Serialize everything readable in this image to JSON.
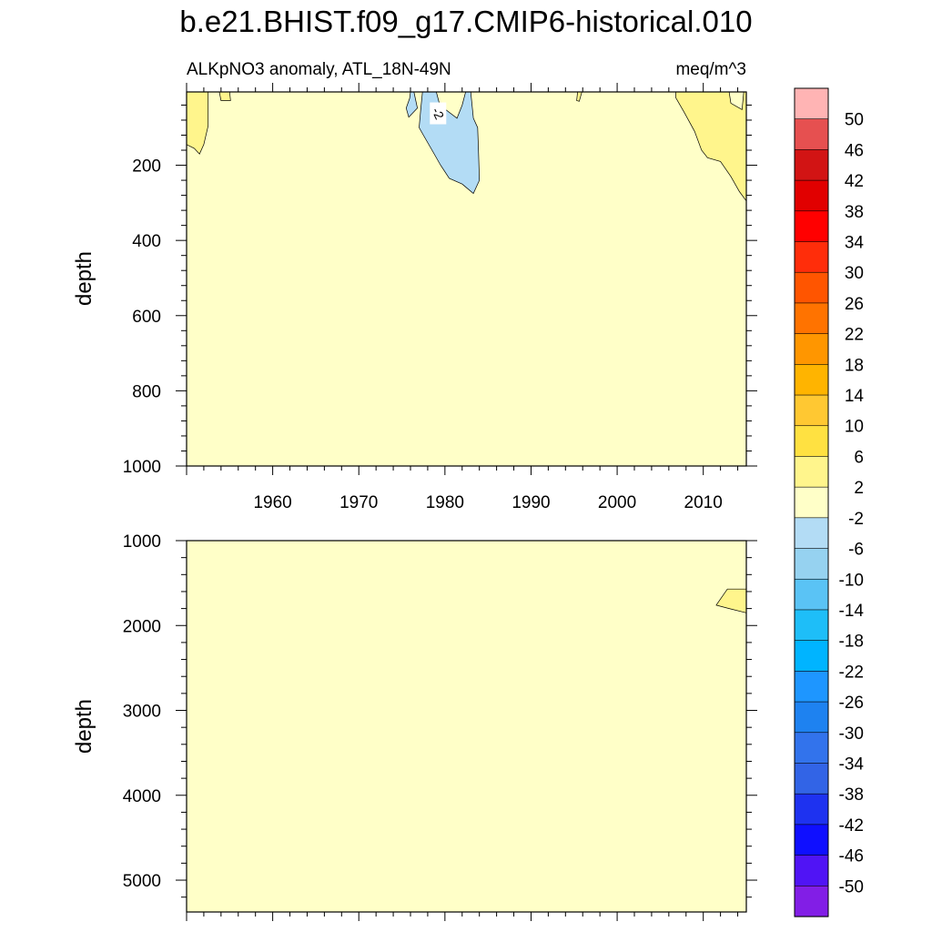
{
  "title": "b.e21.BHIST.f09_g17.CMIP6-historical.010",
  "subtitle_left": "ALKpNO3 anomaly, ATL_18N-49N",
  "subtitle_right": "meq/m^3",
  "colors": {
    "background_fill": "#ffffc8",
    "light_yellow": "#fff58c",
    "light_blue": "#b3dcf5"
  },
  "chart_data": [
    {
      "type": "heatmap",
      "panel": "upper",
      "ylabel": "depth",
      "xlabel": "",
      "xlim": [
        1950,
        2015
      ],
      "ylim": [
        1000,
        5
      ],
      "x_ticks": [
        1960,
        1970,
        1980,
        1990,
        2000,
        2010
      ],
      "x_tick_labels": [
        "1960",
        "1970",
        "1980",
        "1990",
        "2000",
        "2010"
      ],
      "y_ticks": [
        200,
        400,
        600,
        800,
        1000
      ],
      "y_tick_labels": [
        "200",
        "400",
        "600",
        "800",
        "1000"
      ],
      "contour_label": "-2",
      "regions": [
        {
          "name": "positive-anomaly-left",
          "band": "2 to 6",
          "poly": [
            [
              1950,
              5
            ],
            [
              1952.5,
              5
            ],
            [
              1952.5,
              95
            ],
            [
              1952,
              145
            ],
            [
              1951.5,
              170
            ],
            [
              1950.9,
              155
            ],
            [
              1950,
              145
            ]
          ]
        },
        {
          "name": "positive-anomaly-small",
          "band": "2 to 6",
          "poly": [
            [
              1953.8,
              5
            ],
            [
              1955.0,
              5
            ],
            [
              1955.1,
              28
            ],
            [
              1954.0,
              28
            ]
          ]
        },
        {
          "name": "positive-anomaly-tiny",
          "band": "2 to 6",
          "poly": [
            [
              1995.4,
              5
            ],
            [
              1995.9,
              5
            ],
            [
              1995.6,
              30
            ],
            [
              1995.3,
              28
            ]
          ]
        },
        {
          "name": "negative-anomaly-1980",
          "band": "-6 to -2",
          "poly": [
            [
              1976.0,
              5
            ],
            [
              1976.4,
              5
            ],
            [
              1976.8,
              48
            ],
            [
              1975.8,
              72
            ],
            [
              1975.5,
              48
            ],
            [
              1975.9,
              22
            ]
          ]
        },
        {
          "name": "negative-anomaly-1980b",
          "band": "-6 to -2",
          "poly": [
            [
              1977.4,
              5
            ],
            [
              1979.0,
              5
            ],
            [
              1979.4,
              40
            ],
            [
              1981.4,
              75
            ],
            [
              1982.0,
              40
            ],
            [
              1982.4,
              5
            ],
            [
              1983.0,
              5
            ],
            [
              1983.3,
              75
            ],
            [
              1983.8,
              100
            ],
            [
              1983.9,
              160
            ],
            [
              1984.0,
              240
            ],
            [
              1983.3,
              275
            ],
            [
              1982.0,
              250
            ],
            [
              1980.5,
              235
            ],
            [
              1979.5,
              200
            ],
            [
              1978.5,
              160
            ],
            [
              1977.5,
              120
            ],
            [
              1977.0,
              100
            ],
            [
              1977.2,
              48
            ]
          ]
        },
        {
          "name": "positive-anomaly-right",
          "band": "2 to 6",
          "poly": [
            [
              2006.8,
              5
            ],
            [
              2013.0,
              5
            ],
            [
              2013.2,
              35
            ],
            [
              2014.5,
              52
            ],
            [
              2014.7,
              5
            ],
            [
              2015,
              5
            ],
            [
              2015,
              295
            ],
            [
              2014.2,
              270
            ],
            [
              2013.2,
              230
            ],
            [
              2012.0,
              190
            ],
            [
              2010.5,
              180
            ],
            [
              2009.8,
              160
            ],
            [
              2009.0,
              110
            ],
            [
              2007.8,
              60
            ],
            [
              2006.8,
              20
            ]
          ]
        }
      ]
    },
    {
      "type": "heatmap",
      "panel": "lower",
      "ylabel": "depth",
      "xlabel": "",
      "xlim": [
        1950,
        2015
      ],
      "ylim": [
        5375,
        1000
      ],
      "y_ticks": [
        1000,
        2000,
        3000,
        4000,
        5000
      ],
      "y_tick_labels": [
        "1000",
        "2000",
        "3000",
        "4000",
        "5000"
      ],
      "regions": [
        {
          "name": "positive-anomaly-deep",
          "band": "2 to 6",
          "poly": [
            [
              2015,
              1570
            ],
            [
              2012.8,
              1570
            ],
            [
              2011.5,
              1760
            ],
            [
              2013.0,
              1800
            ],
            [
              2015,
              1850
            ]
          ]
        }
      ]
    }
  ],
  "colorbar": {
    "labels": [
      "50",
      "46",
      "42",
      "38",
      "34",
      "30",
      "26",
      "22",
      "18",
      "14",
      "10",
      "6",
      "2",
      "-2",
      "-6",
      "-10",
      "-14",
      "-18",
      "-22",
      "-26",
      "-30",
      "-34",
      "-38",
      "-42",
      "-46",
      "-50"
    ],
    "colors": [
      "#ffb4b4",
      "#e65050",
      "#d21414",
      "#e10000",
      "#ff0000",
      "#ff2d0a",
      "#ff5500",
      "#ff7300",
      "#ff9600",
      "#ffb400",
      "#ffc832",
      "#ffe141",
      "#fff58c",
      "#ffffc8",
      "#b3dcf5",
      "#96d2f0",
      "#5ac3f5",
      "#1ebef8",
      "#00b4ff",
      "#1e96ff",
      "#1e82f0",
      "#3273ec",
      "#3264e6",
      "#1e32f0",
      "#0f0fff",
      "#5014f5",
      "#821ee6"
    ]
  }
}
